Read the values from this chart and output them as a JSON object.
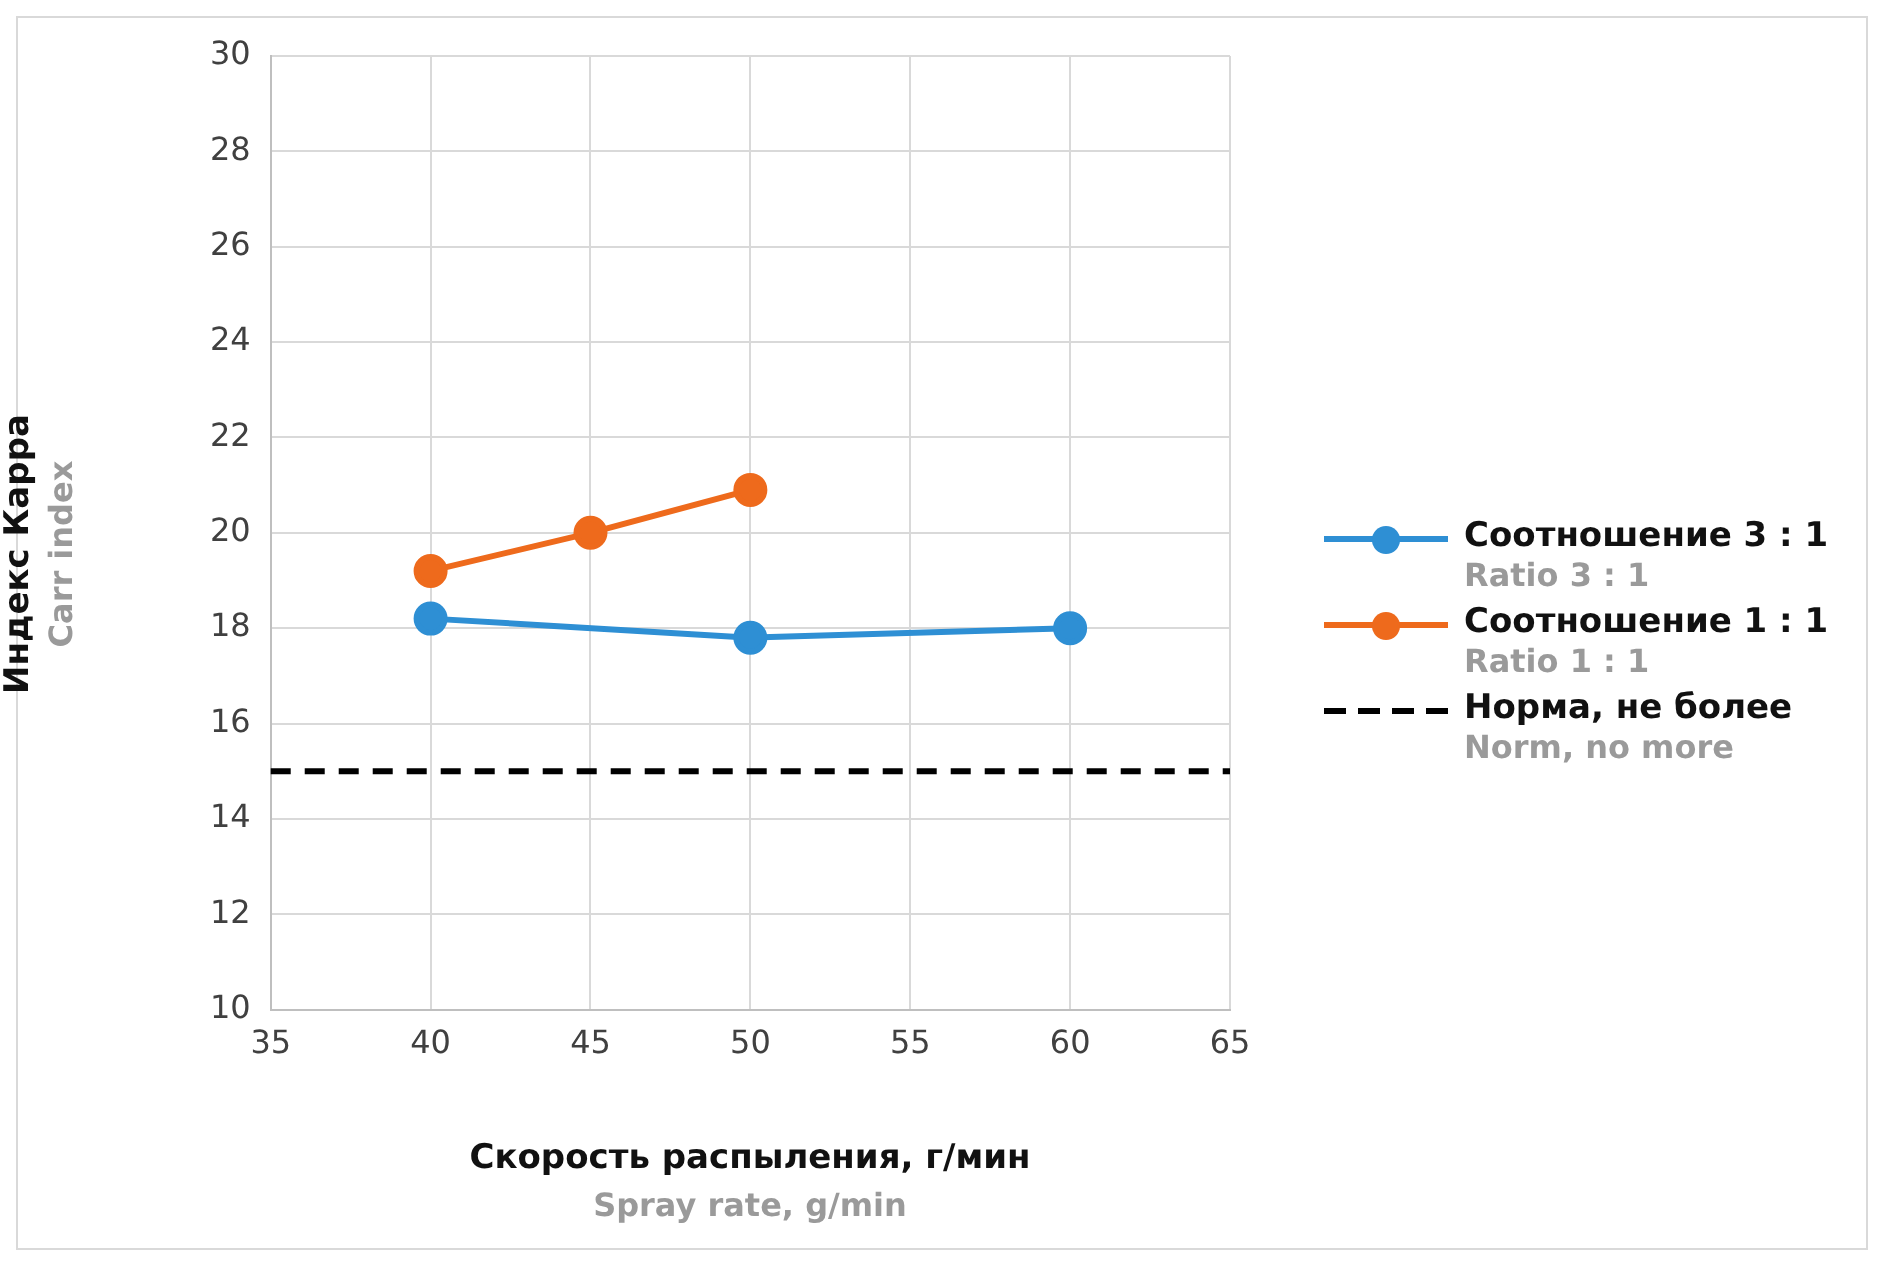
{
  "chart_data": {
    "type": "line",
    "xlabel": "Скорость распыления, г/мин\nSpray rate, g/min",
    "ylabel": "Индекс Карра\nCarr index",
    "series": [
      {
        "name": "Соотношение 3 : 1\nRatio 3 : 1",
        "color": "#2e8fd4",
        "x": [
          40,
          50,
          60
        ],
        "values": [
          18.2,
          17.8,
          18.0
        ]
      },
      {
        "name": "Соотношение 1 : 1\nRatio 1 : 1",
        "color": "#ee6a1c",
        "x": [
          40,
          45,
          50
        ],
        "values": [
          19.2,
          20.0,
          20.9
        ]
      }
    ],
    "ref_lines": [
      {
        "axis": "y",
        "value": 15,
        "label": "Норма, не более\nNorm, no more",
        "color": "#000000",
        "line_style": "dashed"
      }
    ],
    "xlim": [
      35,
      65
    ],
    "xticks": [
      35,
      40,
      45,
      50,
      55,
      60,
      65
    ],
    "ylim": [
      10,
      30
    ],
    "yticks": [
      10,
      12,
      14,
      16,
      18,
      20,
      22,
      24,
      26,
      28,
      30
    ],
    "grid": true,
    "legend": "right",
    "marker": "circle",
    "line_style": "solid"
  }
}
